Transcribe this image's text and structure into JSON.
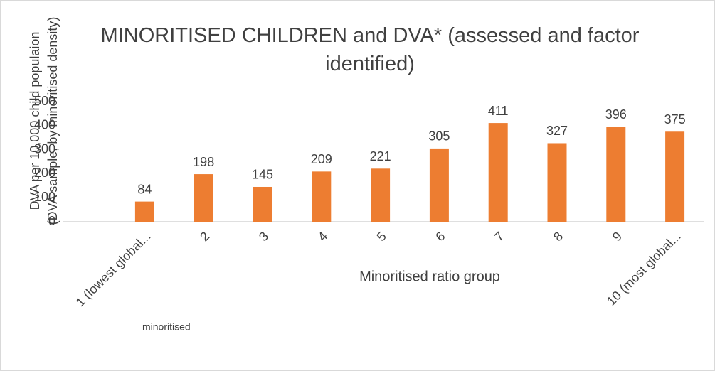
{
  "chart_data": {
    "type": "bar",
    "title": "MINORITISED CHILDREN and DVA* (assessed and factor identified)",
    "y_label": [
      "DVA per 10,000 child populaion",
      "(DVA sample, by minoritised density)"
    ],
    "x_label": "Minoritised ratio group",
    "annotation": "minoritised",
    "categories": [
      "1 (lowest global...",
      "2",
      "3",
      "4",
      "5",
      "6",
      "7",
      "8",
      "9",
      "10 (most global..."
    ],
    "values": [
      84,
      198,
      145,
      209,
      221,
      305,
      411,
      327,
      396,
      375
    ],
    "color": "#ed7d31",
    "ylim": [
      0,
      500
    ],
    "yticks": [
      0,
      100,
      200,
      300,
      400,
      500
    ],
    "grid": false
  }
}
